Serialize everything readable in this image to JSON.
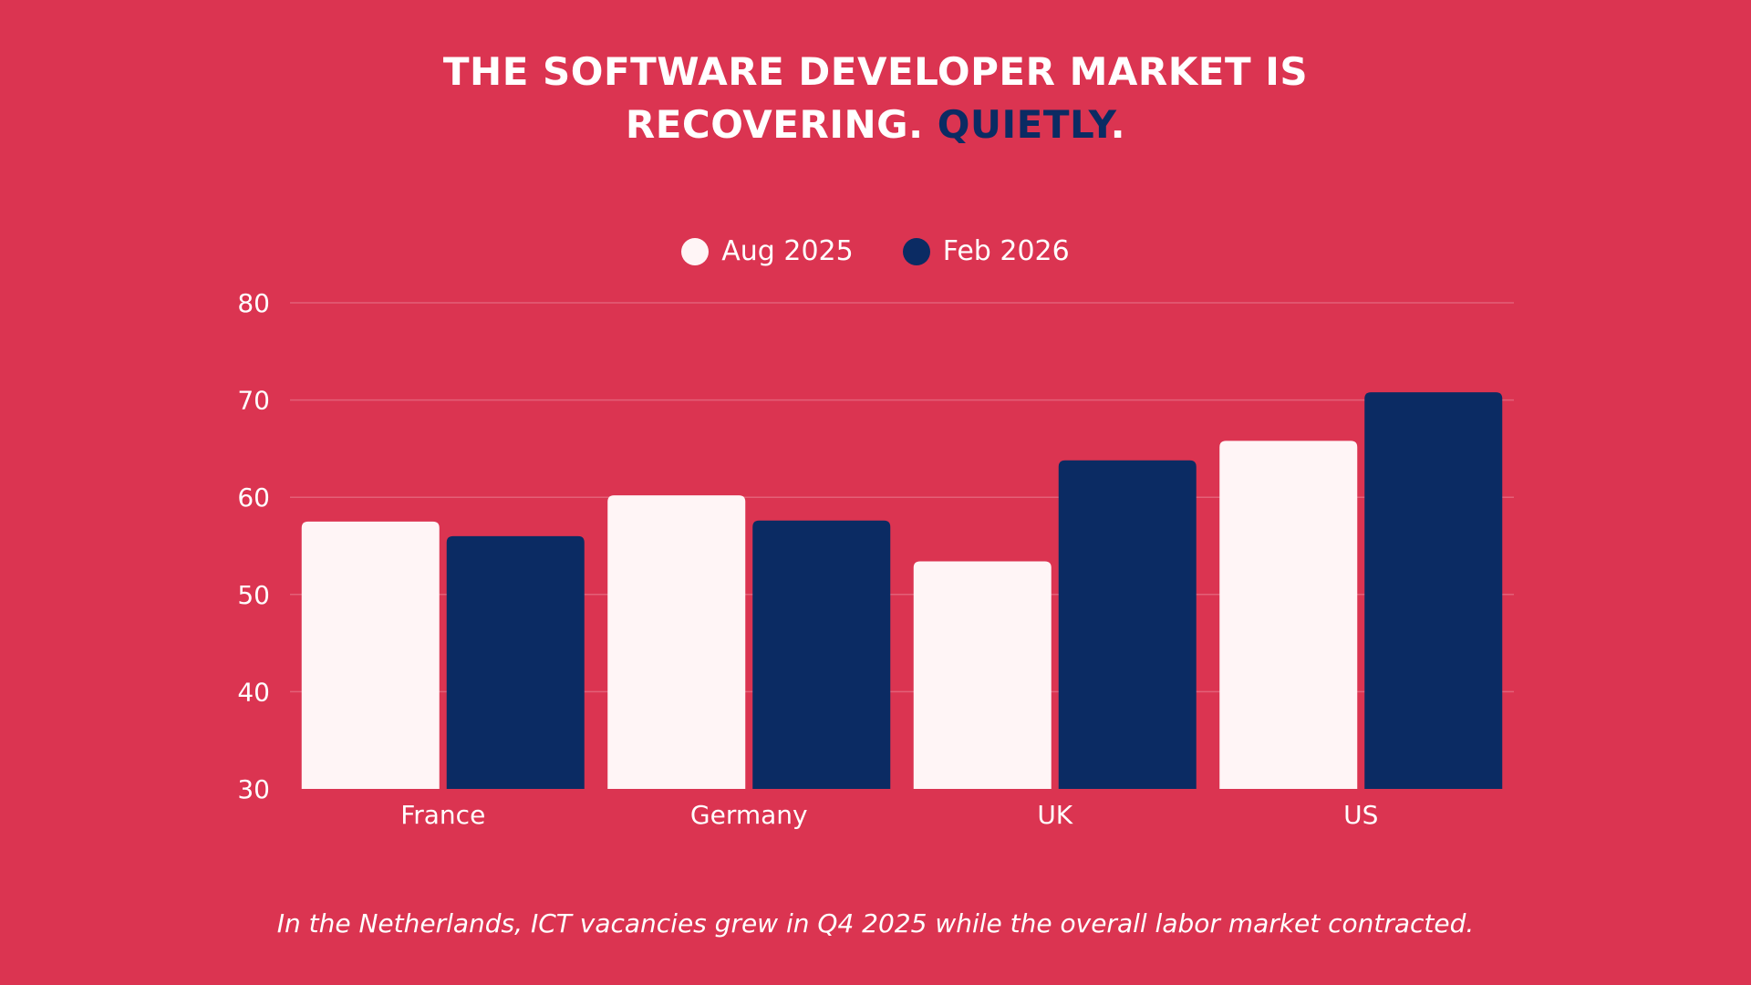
{
  "title": {
    "line1": "THE SOFTWARE DEVELOPER MARKET IS",
    "line2_main": "RECOVERING.",
    "line2_accent": "QUIETLY",
    "line2_end": "."
  },
  "colors": {
    "background": "#DB3451",
    "accent": "#0B2B63",
    "series_aug": "#FFF5F6",
    "series_feb": "#0B2B63"
  },
  "chart_data": {
    "type": "bar",
    "categories": [
      "France",
      "Germany",
      "UK",
      "US"
    ],
    "series": [
      {
        "name": "Aug 2025",
        "values": [
          57.5,
          60.2,
          53.4,
          65.8
        ],
        "color": "#FFF5F6"
      },
      {
        "name": "Feb 2026",
        "values": [
          56.0,
          57.6,
          63.8,
          70.8
        ],
        "color": "#0B2B63"
      }
    ],
    "y_ticks": [
      "30",
      "40",
      "50",
      "60",
      "70",
      "80"
    ],
    "ylim": [
      30,
      80
    ],
    "grid": true,
    "legend_position": "top-center",
    "title": "",
    "xlabel": "",
    "ylabel": ""
  },
  "footnote": "In the Netherlands, ICT vacancies grew in Q4 2025 while the overall labor market contracted."
}
